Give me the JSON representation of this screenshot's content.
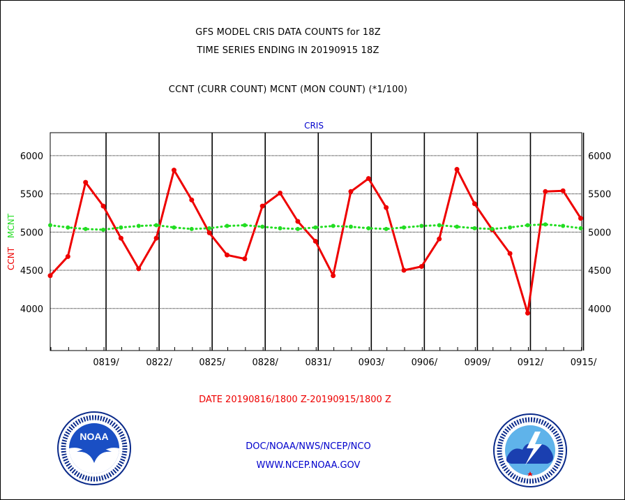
{
  "title_line1": "GFS MODEL CRIS DATA COUNTS for 18Z",
  "title_line2": "TIME SERIES ENDING IN 20190915 18Z",
  "subtitle": "CCNT (CURR COUNT) MCNT (MON COUNT) (*1/100)",
  "date_range": "DATE 20190816/1800 Z-20190915/1800 Z",
  "footer": {
    "line1": "DOC/NOAA/NWS/NCEP/NCO",
    "line2": "WWW.NCEP.NOAA.GOV"
  },
  "logos": {
    "left": {
      "icon": "noaa-logo",
      "text": "NOAA"
    },
    "right": {
      "icon": "nws-logo"
    }
  },
  "colors": {
    "ccnt": "#ee0000",
    "mcnt": "#22dd22",
    "label": "#0000cc",
    "axis": "#000000"
  },
  "chart_data": {
    "type": "line",
    "title": "CRIS",
    "ylabel_left": [
      "CCNT",
      "MCNT"
    ],
    "ylim": [
      3450,
      6300
    ],
    "yticks": [
      4000,
      4500,
      5000,
      5500,
      6000
    ],
    "ytick_labels": [
      "4000",
      "4500",
      "5000",
      "5500",
      "6000"
    ],
    "xtick_labels": [
      "0819/",
      "0822/",
      "0825/",
      "0828/",
      "0831/",
      "0903/",
      "0906/",
      "0909/",
      "0912/",
      "0915/"
    ],
    "x_days": [
      "0816",
      "0817",
      "0818",
      "0819",
      "0820",
      "0821",
      "0822",
      "0823",
      "0824",
      "0825",
      "0826",
      "0827",
      "0828",
      "0829",
      "0830",
      "0831",
      "0901",
      "0902",
      "0903",
      "0904",
      "0905",
      "0906",
      "0907",
      "0908",
      "0909",
      "0910",
      "0911",
      "0912",
      "0913",
      "0914",
      "0915"
    ],
    "grid": true,
    "series": [
      {
        "name": "CCNT",
        "color": "#ee0000",
        "values": [
          4430,
          4680,
          5650,
          5340,
          4920,
          4520,
          4920,
          5810,
          5420,
          4990,
          4700,
          4650,
          5340,
          5510,
          5140,
          4880,
          4430,
          5530,
          5700,
          5320,
          4500,
          4550,
          4910,
          5820,
          5370,
          5030,
          4720,
          3940,
          5530,
          5540,
          5180
        ]
      },
      {
        "name": "MCNT",
        "color": "#22dd22",
        "values": [
          5090,
          5060,
          5040,
          5030,
          5060,
          5080,
          5090,
          5060,
          5040,
          5050,
          5080,
          5090,
          5070,
          5050,
          5040,
          5060,
          5080,
          5070,
          5050,
          5040,
          5060,
          5080,
          5090,
          5070,
          5050,
          5040,
          5060,
          5090,
          5100,
          5080,
          5050
        ]
      }
    ]
  }
}
